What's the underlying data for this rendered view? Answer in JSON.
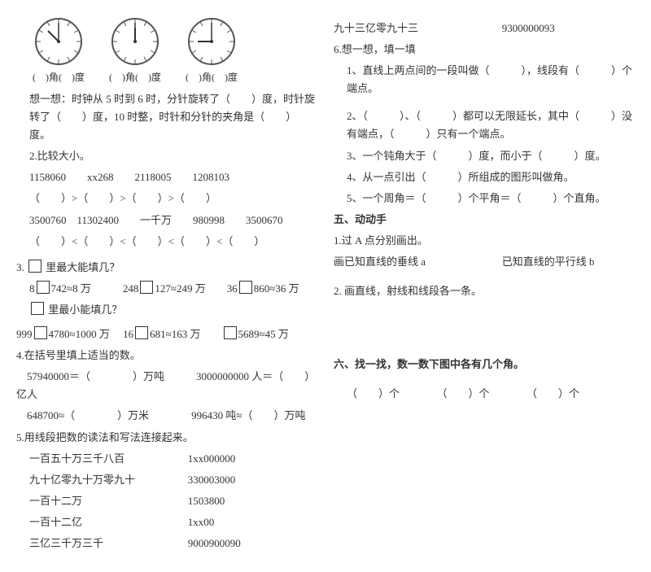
{
  "left": {
    "clocks": [
      {
        "hour": 8,
        "minute": 0,
        "caption_a": "(　)角(　)度"
      },
      {
        "hour": 12,
        "minute": 0,
        "caption_a": "(　)角(　)度"
      },
      {
        "hour": 9,
        "minute": 0,
        "caption_a": "(　)角(　)度"
      }
    ],
    "think": "想一想：时钟从 5 时到 6 时，分针旋转了（　　）度，时针旋转了（　　）度，10 时整，时针和分针的夹角是（　　）度。",
    "q2_title": "2.比较大小。",
    "cmp_row1a": "1158060　　xx268　　2118005　　1208103",
    "cmp_row1b": "（　　）>（　　）>（　　）>（　　）",
    "cmp_row2a": "3500760　11302400　　一千万　　980998　　3500670",
    "cmp_row2b": "（　　）<（　　）<（　　）<（　　）<（　　）",
    "q3_title": "3.　 里最大能填几？",
    "q3_line1_a": "8",
    "q3_line1_b": "742≈8 万　　　248",
    "q3_line1_c": "127≈249 万　　36",
    "q3_line1_d": "860≈36 万",
    "q3_sub": "　 里最小能填几？",
    "q3_line2_a": "999",
    "q3_line2_b": "4780≈1000 万　 16",
    "q3_line2_c": "681≈163 万　　",
    "q3_line2_d": "5689≈45 万",
    "q4_title": "4.在括号里填上适当的数。",
    "q4_l1": "　57940000＝（　　　　）万吨　　　3000000000 人＝（　　）亿人",
    "q4_l2": "　648700≈（　　　　）万米　　　　996430 吨≈（　　）万吨",
    "q5_title": "5.用线段把数的读法和写法连接起来。",
    "q5_rows": [
      [
        "一百五十万三千八百",
        "1xx000000"
      ],
      [
        "九十亿零九十万零九十",
        "330003000"
      ],
      [
        "一百十二万",
        "1503800"
      ],
      [
        "一百十二亿",
        "1xx00"
      ],
      [
        "三亿三千万三千",
        "9000900090"
      ]
    ]
  },
  "right": {
    "t_l": "九十三亿零九十三",
    "t_r": "9300000093",
    "q6_title": "6.想一想，填一填",
    "q6_1": "1、直线上两点间的一段叫做（　　　），线段有（　　　）个端点。",
    "q6_2": "2、（　　　）、（　　　）都可以无限延长，其中（　　　）没有端点，（　　　）只有一个端点。",
    "q6_3": "3、一个钝角大于（　　　）度，而小于（　　　）度。",
    "q6_4": "4、从一点引出（　　　）所组成的图形叫做角。",
    "q6_5": "5、一个周角＝（　　　）个平角＝（　　　）个直角。",
    "sec5_title": "五、动动手",
    "sec5_1": "1.过 A 点分别画出。",
    "sec5_1a": "画已知直线的垂线 a",
    "sec5_1b": "已知直线的平行线 b",
    "sec5_2": "2. 画直线，射线和线段各一条。",
    "sec6_title": "六、找一找，数一数下图中各有几个角。",
    "sec6_row": "（　　）个　　　　（　　）个　　　　（　　）个"
  }
}
